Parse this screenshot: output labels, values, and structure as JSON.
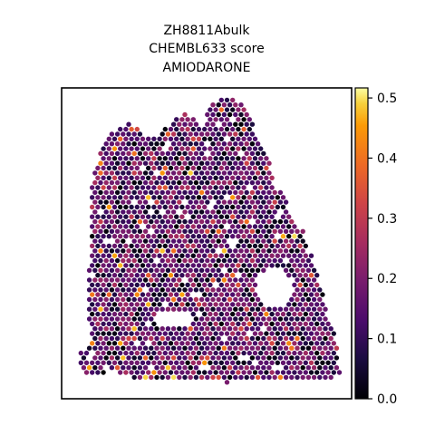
{
  "chart_data": {
    "type": "scatter",
    "title_lines": [
      "ZH8811Abulk",
      "CHEMBL633 score",
      "AMIODARONE"
    ],
    "xlabel": "",
    "ylabel": "",
    "grid": false,
    "colormap": "inferno",
    "colorbar": {
      "range": [
        0.0,
        0.5167
      ],
      "ticks": [
        0.0,
        0.1,
        0.2,
        0.3,
        0.4,
        0.5
      ],
      "tick_labels": [
        "0.0",
        "0.1",
        "0.2",
        "0.3",
        "0.4",
        "0.5"
      ]
    },
    "spots": {
      "description_values": "hexagonal spatial spot grid; per-spot score values in colorbar units",
      "value_distribution": {
        "median": 0.15,
        "spread": 0.07,
        "min": 0.0,
        "max": 0.52
      },
      "holes": 2
    }
  }
}
